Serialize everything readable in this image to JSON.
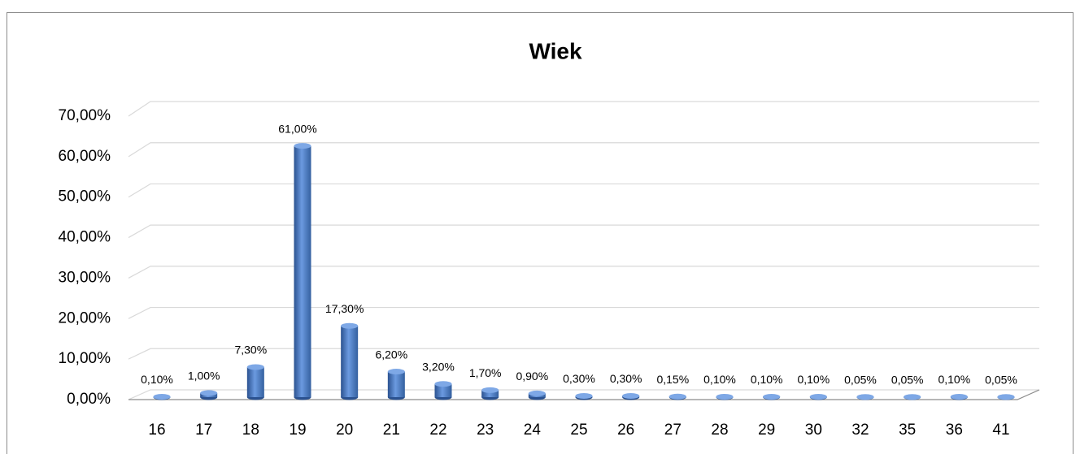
{
  "chart_data": {
    "type": "bar",
    "title": "Wiek",
    "categories": [
      "16",
      "17",
      "18",
      "19",
      "20",
      "21",
      "22",
      "23",
      "24",
      "25",
      "26",
      "27",
      "28",
      "29",
      "30",
      "32",
      "35",
      "36",
      "41"
    ],
    "values": [
      0.1,
      1.0,
      7.3,
      61.0,
      17.3,
      6.2,
      3.2,
      1.7,
      0.9,
      0.3,
      0.3,
      0.15,
      0.1,
      0.1,
      0.1,
      0.05,
      0.05,
      0.1,
      0.05
    ],
    "value_labels": [
      "0,10%",
      "1,00%",
      "7,30%",
      "61,00%",
      "17,30%",
      "6,20%",
      "3,20%",
      "1,70%",
      "0,90%",
      "0,30%",
      "0,30%",
      "0,15%",
      "0,10%",
      "0,10%",
      "0,10%",
      "0,05%",
      "0,05%",
      "0,10%",
      "0,05%"
    ],
    "color": "#4f81bd",
    "ylim": [
      0,
      70
    ],
    "yticks": [
      {
        "value": 0,
        "label": "0,00%"
      },
      {
        "value": 10,
        "label": "10,00%"
      },
      {
        "value": 20,
        "label": "20,00%"
      },
      {
        "value": 30,
        "label": "30,00%"
      },
      {
        "value": 40,
        "label": "40,00%"
      },
      {
        "value": 50,
        "label": "50,00%"
      },
      {
        "value": 60,
        "label": "60,00%"
      },
      {
        "value": 70,
        "label": "70,00%"
      }
    ],
    "grid": true
  }
}
